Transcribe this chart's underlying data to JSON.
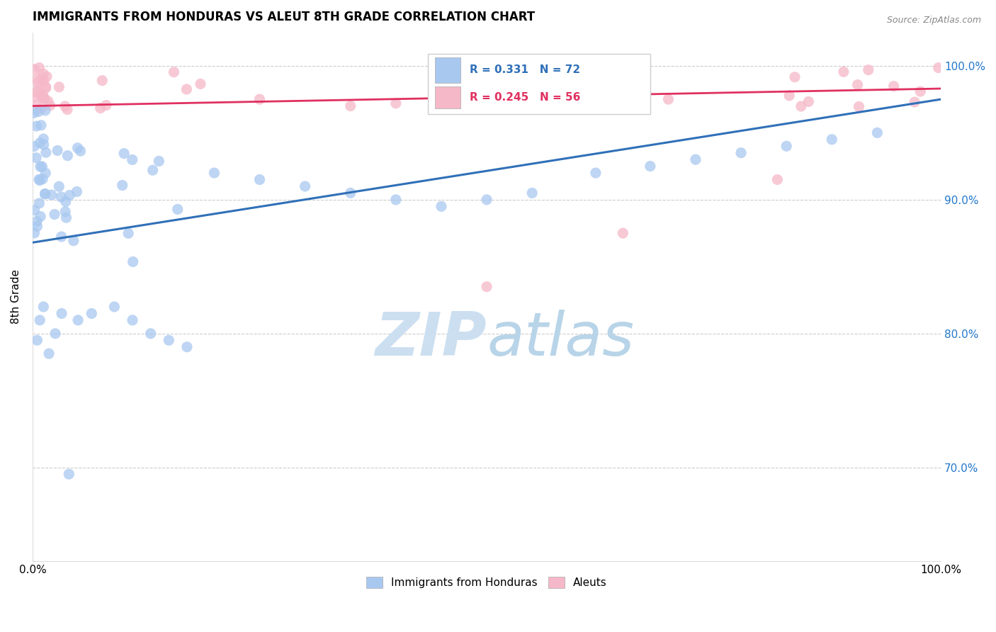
{
  "title": "IMMIGRANTS FROM HONDURAS VS ALEUT 8TH GRADE CORRELATION CHART",
  "source": "Source: ZipAtlas.com",
  "ylabel": "8th Grade",
  "legend_blue_label": "Immigrants from Honduras",
  "legend_pink_label": "Aleuts",
  "blue_R": 0.331,
  "blue_N": 72,
  "pink_R": 0.245,
  "pink_N": 56,
  "blue_color": "#a8c8f0",
  "pink_color": "#f5b8c8",
  "blue_line_color": "#3070b8",
  "pink_line_color": "#e03060",
  "blue_legend_color": "#3070b8",
  "pink_legend_color": "#e03060",
  "right_ytick_values": [
    0.7,
    0.8,
    0.9,
    1.0
  ],
  "right_ytick_labels": [
    "70.0%",
    "80.0%",
    "90.0%",
    "100.0%"
  ],
  "ylim_min": 0.63,
  "ylim_max": 1.025,
  "xlim_min": 0.0,
  "xlim_max": 1.0,
  "blue_line_x0": 0.0,
  "blue_line_x1": 1.0,
  "blue_line_y0": 0.868,
  "blue_line_y1": 0.975,
  "pink_line_x0": 0.0,
  "pink_line_x1": 1.0,
  "pink_line_y0": 0.97,
  "pink_line_y1": 0.983,
  "dot_size": 120
}
